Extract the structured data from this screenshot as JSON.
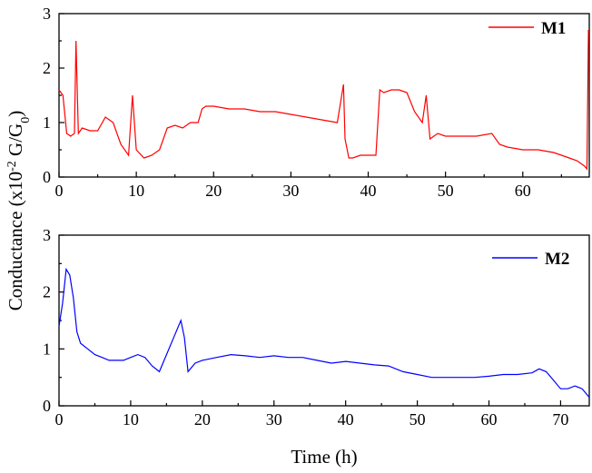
{
  "chart_data": [
    {
      "type": "line",
      "panel": "top",
      "series": [
        {
          "name": "M1",
          "color": "#ff0000",
          "x": [
            0,
            0.5,
            1,
            1.5,
            2,
            2.2,
            2.5,
            3,
            4,
            5,
            6,
            7,
            8,
            9,
            9.5,
            10,
            11,
            12,
            13,
            14,
            15,
            16,
            17,
            18,
            18.5,
            19,
            20,
            22,
            24,
            26,
            28,
            30,
            32,
            34,
            36,
            36.8,
            37,
            37.5,
            38,
            39,
            40,
            41,
            41.5,
            42,
            43,
            44,
            45,
            46,
            47,
            47.5,
            48,
            49,
            50,
            52,
            54,
            56,
            57,
            58,
            60,
            62,
            64,
            66,
            67,
            68,
            68.3,
            68.5
          ],
          "values": [
            1.6,
            1.5,
            0.8,
            0.75,
            0.8,
            2.5,
            0.8,
            0.9,
            0.85,
            0.85,
            1.1,
            1.0,
            0.6,
            0.4,
            1.5,
            0.5,
            0.35,
            0.4,
            0.5,
            0.9,
            0.95,
            0.9,
            1.0,
            1.0,
            1.25,
            1.3,
            1.3,
            1.25,
            1.25,
            1.2,
            1.2,
            1.15,
            1.1,
            1.05,
            1.0,
            1.7,
            0.7,
            0.35,
            0.35,
            0.4,
            0.4,
            0.4,
            1.6,
            1.55,
            1.6,
            1.6,
            1.55,
            1.2,
            1.0,
            1.5,
            0.7,
            0.8,
            0.75,
            0.75,
            0.75,
            0.8,
            0.6,
            0.55,
            0.5,
            0.5,
            0.45,
            0.35,
            0.3,
            0.2,
            0.15,
            2.7
          ]
        }
      ],
      "xlim": [
        0,
        68.6
      ],
      "ylim": [
        0,
        3
      ],
      "xticks": [
        0,
        10,
        20,
        30,
        40,
        50,
        60
      ],
      "yticks": [
        0,
        1,
        2,
        3
      ],
      "xlabel": "",
      "ylabel": "",
      "legend": "top-right",
      "grid": false
    },
    {
      "type": "line",
      "panel": "bottom",
      "series": [
        {
          "name": "M2",
          "color": "#0000ff",
          "x": [
            0,
            0.5,
            1,
            1.5,
            2,
            2.5,
            3,
            4,
            5,
            6,
            7,
            8,
            9,
            10,
            11,
            12,
            13,
            14,
            15,
            16,
            17,
            17.5,
            18,
            19,
            20,
            22,
            24,
            26,
            28,
            30,
            32,
            34,
            36,
            38,
            40,
            42,
            44,
            46,
            48,
            50,
            52,
            54,
            56,
            58,
            60,
            62,
            64,
            66,
            67,
            68,
            69,
            70,
            71,
            72,
            73,
            74
          ],
          "values": [
            1.4,
            1.8,
            2.4,
            2.3,
            1.9,
            1.3,
            1.1,
            1.0,
            0.9,
            0.85,
            0.8,
            0.8,
            0.8,
            0.85,
            0.9,
            0.85,
            0.7,
            0.6,
            0.9,
            1.2,
            1.5,
            1.2,
            0.6,
            0.75,
            0.8,
            0.85,
            0.9,
            0.88,
            0.85,
            0.88,
            0.85,
            0.85,
            0.8,
            0.75,
            0.78,
            0.75,
            0.72,
            0.7,
            0.6,
            0.55,
            0.5,
            0.5,
            0.5,
            0.5,
            0.52,
            0.55,
            0.55,
            0.58,
            0.65,
            0.6,
            0.45,
            0.3,
            0.3,
            0.35,
            0.3,
            0.15
          ]
        }
      ],
      "xlim": [
        0,
        74
      ],
      "ylim": [
        0,
        3
      ],
      "xticks": [
        0,
        10,
        20,
        30,
        40,
        50,
        60,
        70
      ],
      "yticks": [
        0,
        1,
        2,
        3
      ],
      "xlabel": "Time (h)",
      "ylabel": "",
      "legend": "top-right",
      "grid": false
    }
  ],
  "shared": {
    "ylabel_main": "Conductance (x10",
    "ylabel_exp": "-2",
    "ylabel_mid": " G/G",
    "ylabel_sub": "0",
    "ylabel_end": ")"
  }
}
